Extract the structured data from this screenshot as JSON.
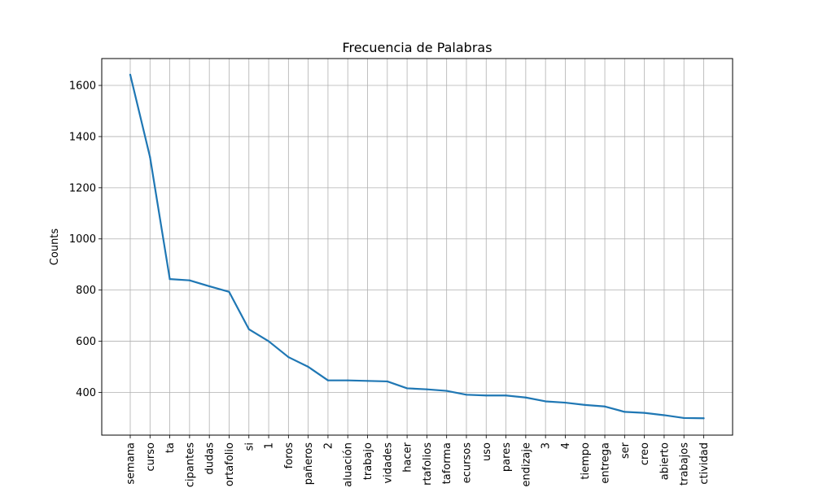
{
  "chart_data": {
    "type": "line",
    "title": "Frecuencia de Palabras",
    "xlabel": "",
    "ylabel": "Counts",
    "grid": true,
    "ylim": [
      233,
      1705
    ],
    "yticks": [
      400,
      600,
      800,
      1000,
      1200,
      1400,
      1600
    ],
    "line_color": "#1f77b4",
    "categories": [
      "semana",
      "curso",
      "ta",
      "participantes",
      "dudas",
      "portafolio",
      "si",
      "1",
      "foros",
      "compañeros",
      "2",
      "evaluación",
      "trabajo",
      "actividades",
      "hacer",
      "portafolios",
      "plataforma",
      "recursos",
      "uso",
      "pares",
      "aprendizaje",
      "3",
      "4",
      "tiempo",
      "entrega",
      "ser",
      "creo",
      "abierto",
      "trabajos",
      "actividad"
    ],
    "tick_labels": [
      "semana",
      "curso",
      "ta",
      "icipantes",
      "dudas",
      "ortafolio",
      "si",
      "1",
      "foros",
      "pañeros",
      "2",
      "aluación",
      "trabajo",
      "vidades",
      "hacer",
      "rtafolios",
      "taforma",
      "ecursos",
      "uso",
      "pares",
      "endizaje",
      "3",
      "4",
      "tiempo",
      "entrega",
      "ser",
      "creo",
      "abierto",
      "trabajos",
      "ctividad"
    ],
    "series": [
      {
        "values": [
          1642,
          1320,
          843,
          838,
          815,
          793,
          647,
          600,
          538,
          500,
          447,
          447,
          445,
          443,
          416,
          412,
          406,
          391,
          388,
          388,
          380,
          365,
          360,
          351,
          345,
          324,
          320,
          311,
          300,
          299
        ]
      }
    ]
  }
}
